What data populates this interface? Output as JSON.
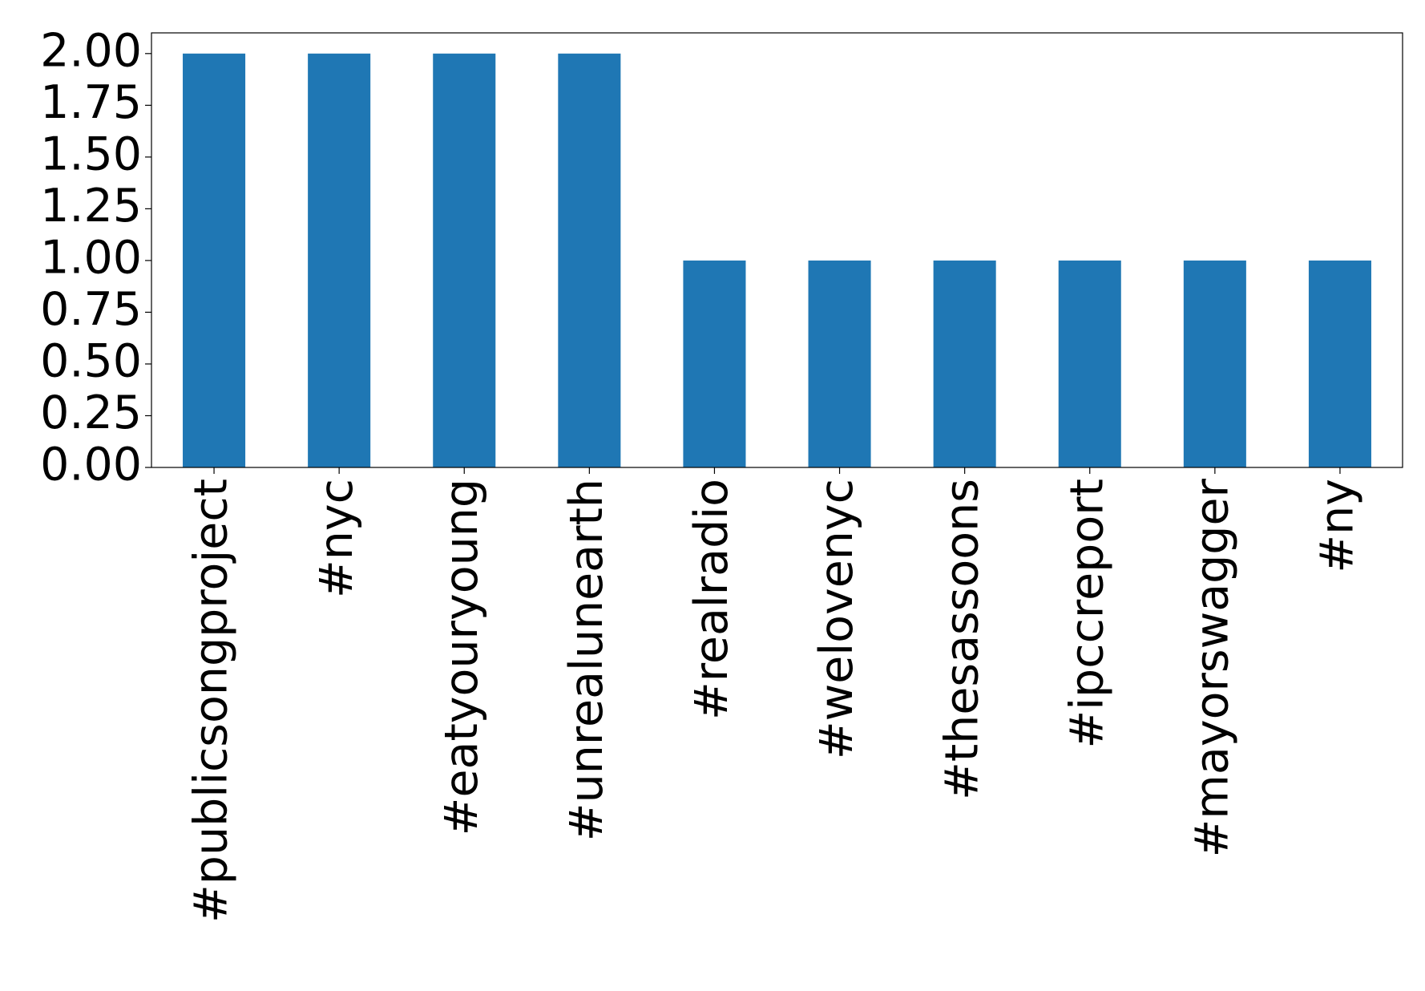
{
  "chart_data": {
    "type": "bar",
    "categories": [
      "#publicsongproject",
      "#nyc",
      "#eatyouryoung",
      "#unrealunearth",
      "#realradio",
      "#welovenyc",
      "#thesassoons",
      "#ipccreport",
      "#mayorswagger",
      "#ny"
    ],
    "values": [
      2,
      2,
      2,
      2,
      1,
      1,
      1,
      1,
      1,
      1
    ],
    "color": "#1f77b4",
    "ylim": [
      0,
      2.1
    ],
    "yticks": [
      {
        "value": 0,
        "label": "0.00"
      },
      {
        "value": 0.25,
        "label": "0.25"
      },
      {
        "value": 0.5,
        "label": "0.50"
      },
      {
        "value": 0.75,
        "label": "0.75"
      },
      {
        "value": 1,
        "label": "1.00"
      },
      {
        "value": 1.25,
        "label": "1.25"
      },
      {
        "value": 1.5,
        "label": "1.50"
      },
      {
        "value": 1.75,
        "label": "1.75"
      },
      {
        "value": 2,
        "label": "2.00"
      }
    ],
    "grid": false
  }
}
